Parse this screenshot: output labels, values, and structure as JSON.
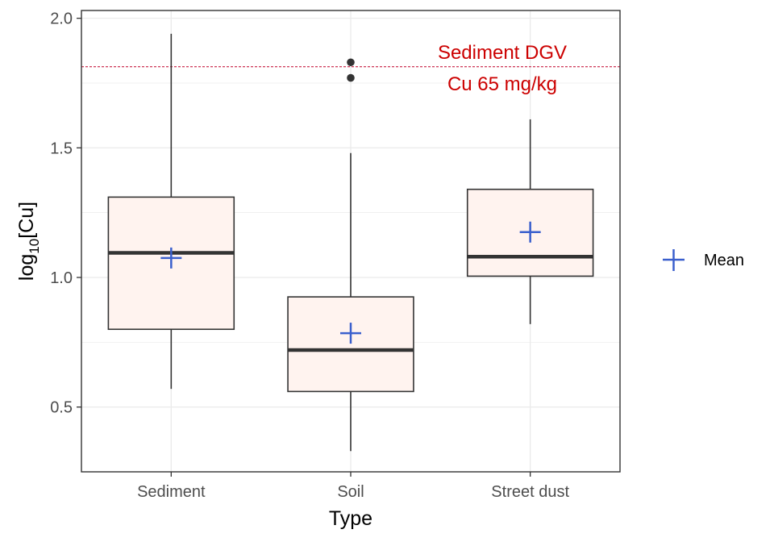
{
  "chart_data": {
    "type": "box",
    "xlabel": "Type",
    "ylabel": {
      "prefix": "log",
      "subscript": "10",
      "suffix": "[Cu]"
    },
    "ylim": [
      0.25,
      2.03
    ],
    "yticks": [
      0.5,
      1.0,
      1.5,
      2.0
    ],
    "ytick_labels": [
      "0.5",
      "1.0",
      "1.5",
      "2.0"
    ],
    "grid": true,
    "categories": [
      "Sediment",
      "Soil",
      "Street dust"
    ],
    "boxes": [
      {
        "category": "Sediment",
        "whisker_low": 0.57,
        "q1": 0.8,
        "median": 1.095,
        "q3": 1.31,
        "whisker_high": 1.94,
        "mean": 1.075,
        "outliers": []
      },
      {
        "category": "Soil",
        "whisker_low": 0.33,
        "q1": 0.56,
        "median": 0.72,
        "q3": 0.925,
        "whisker_high": 1.48,
        "mean": 0.785,
        "outliers": [
          1.77,
          1.83
        ]
      },
      {
        "category": "Street dust",
        "whisker_low": 0.82,
        "q1": 1.005,
        "median": 1.08,
        "q3": 1.34,
        "whisker_high": 1.61,
        "mean": 1.175,
        "outliers": []
      }
    ],
    "reference_line": {
      "y": 1.813,
      "color": "#c0002a",
      "label_line1": "Sediment DGV",
      "label_line2": "Cu 65 mg/kg",
      "label_color": "#cc0000"
    },
    "legend": {
      "position": "right",
      "entries": [
        {
          "label": "Mean",
          "marker": "plus",
          "color": "#3a5fcd"
        }
      ]
    },
    "colors": {
      "box_fill": "#fff3ef",
      "box_stroke": "#333333",
      "median": "#333333",
      "mean": "#3a5fcd",
      "outlier": "#333333",
      "grid": "#ebebeb",
      "panel_border": "#333333"
    }
  }
}
